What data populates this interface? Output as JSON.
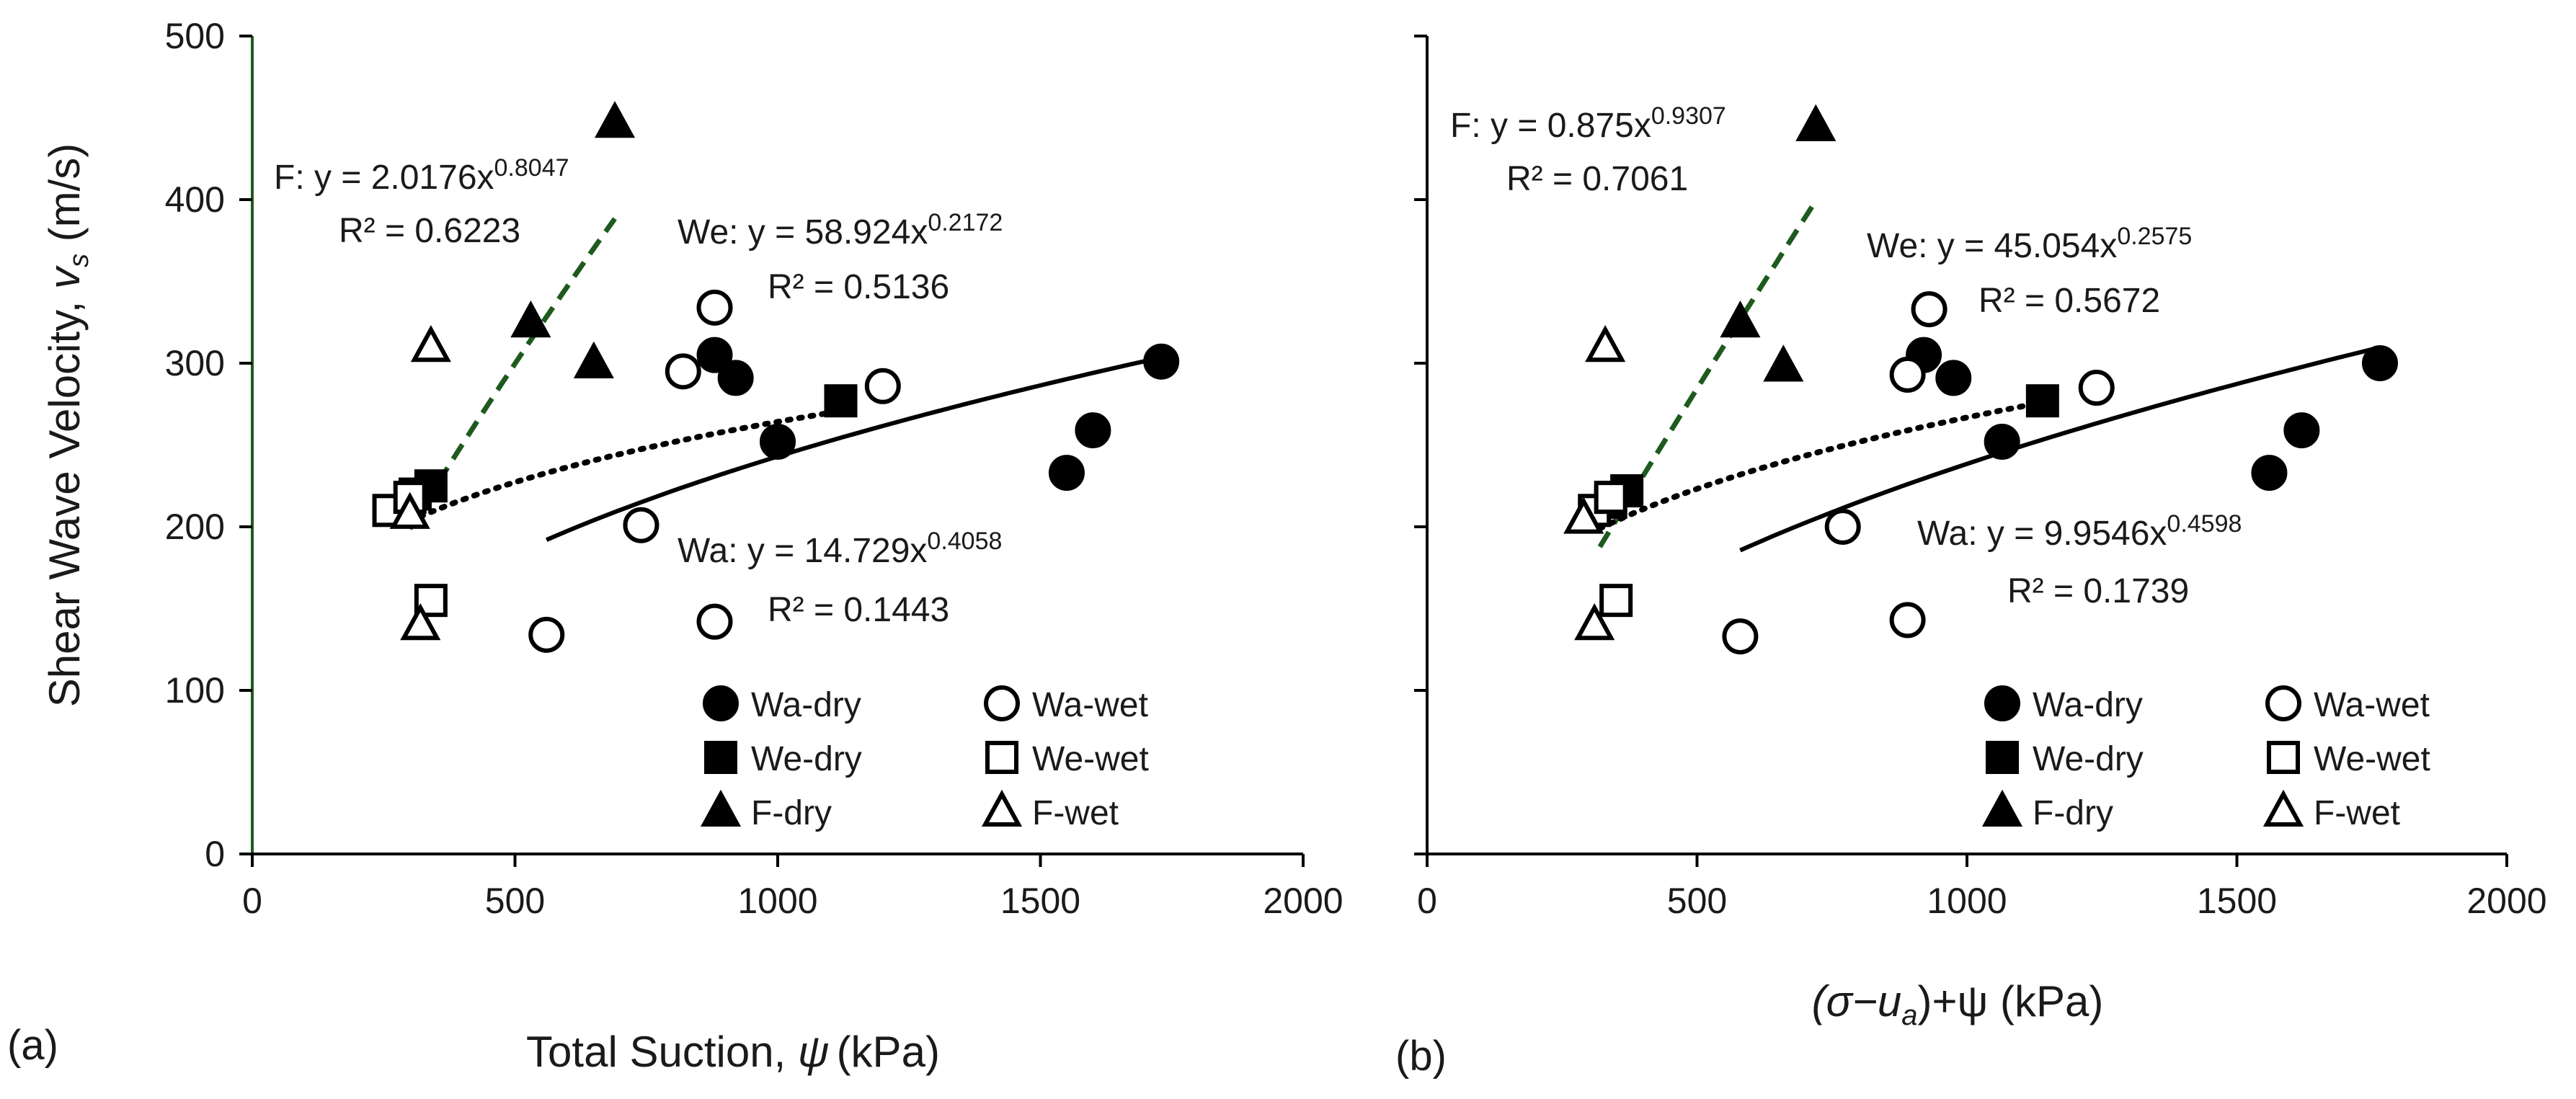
{
  "chart_data": [
    {
      "type": "scatter",
      "panel_label": "(a)",
      "title": "",
      "xlabel": "Total Suction, ",
      "xlabel_symbol": "ψ",
      "xlabel_unit": "(kPa)",
      "ylabel": "Shear Wave Velocity, ",
      "ylabel_symbol": "v",
      "ylabel_sub": "s",
      "ylabel_unit": " (m/s)",
      "xlim": [
        0,
        2000
      ],
      "ylim": [
        0,
        500
      ],
      "xticks": [
        "0",
        "500",
        "1000",
        "1500",
        "2000"
      ],
      "yticks": [
        "0",
        "100",
        "200",
        "300",
        "400",
        "500"
      ],
      "series": [
        {
          "name": "Wa-dry",
          "marker": "circle",
          "filled": true,
          "points": [
            [
              880,
              305
            ],
            [
              920,
              291
            ],
            [
              1000,
              252
            ],
            [
              1550,
              233
            ],
            [
              1600,
              259
            ],
            [
              1730,
              301
            ]
          ]
        },
        {
          "name": "Wa-wet",
          "marker": "circle",
          "filled": false,
          "points": [
            [
              560,
              134
            ],
            [
              740,
              201
            ],
            [
              820,
              295
            ],
            [
              880,
              334
            ],
            [
              880,
              142
            ],
            [
              1200,
              286
            ]
          ]
        },
        {
          "name": "We-dry",
          "marker": "square",
          "filled": true,
          "points": [
            [
              310,
              220
            ],
            [
              340,
              225
            ],
            [
              1120,
              277
            ]
          ]
        },
        {
          "name": "We-wet",
          "marker": "square",
          "filled": false,
          "points": [
            [
              260,
              210
            ],
            [
              300,
              218
            ],
            [
              340,
              155
            ]
          ]
        },
        {
          "name": "F-dry",
          "marker": "triangle",
          "filled": true,
          "points": [
            [
              530,
              325
            ],
            [
              650,
              300
            ],
            [
              690,
              447
            ]
          ]
        },
        {
          "name": "F-wet",
          "marker": "triangle",
          "filled": false,
          "points": [
            [
              300,
              208
            ],
            [
              320,
              140
            ],
            [
              340,
              310
            ]
          ]
        }
      ],
      "fits": [
        {
          "name": "F",
          "a": 2.0176,
          "b": 0.8047,
          "x_range": [
            300,
            690
          ],
          "style": "dashed-green"
        },
        {
          "name": "We",
          "a": 58.924,
          "b": 0.2172,
          "x_range": [
            300,
            1120
          ],
          "style": "dotted"
        },
        {
          "name": "Wa",
          "a": 14.729,
          "b": 0.4058,
          "x_range": [
            560,
            1730
          ],
          "style": "solid"
        }
      ],
      "annotations": {
        "f_eq": "F: y = 2.0176x",
        "f_exp": "0.8047",
        "f_r2": "R² = 0.6223",
        "we_eq": "We: y = 58.924x",
        "we_exp": "0.2172",
        "we_r2": "R² = 0.5136",
        "wa_eq": "Wa: y = 14.729x",
        "wa_exp": "0.4058",
        "wa_r2": "R² = 0.1443"
      },
      "legend": [
        "Wa-dry",
        "Wa-wet",
        "We-dry",
        "We-wet",
        "F-dry",
        "F-wet"
      ],
      "legend_placement": "bottom-right"
    },
    {
      "type": "scatter",
      "panel_label": "(b)",
      "title": "",
      "xlabel": "(σ−u",
      "xlabel_sub": "a",
      "xlabel_rest": ")+ψ (kPa)",
      "ylabel": "",
      "xlim": [
        0,
        2000
      ],
      "ylim": [
        0,
        500
      ],
      "xticks": [
        "0",
        "500",
        "1000",
        "1500",
        "2000"
      ],
      "yticks": [],
      "series": [
        {
          "name": "Wa-dry",
          "marker": "circle",
          "filled": true,
          "points": [
            [
              920,
              305
            ],
            [
              975,
              291
            ],
            [
              1065,
              252
            ],
            [
              1560,
              233
            ],
            [
              1620,
              259
            ],
            [
              1765,
              300
            ]
          ]
        },
        {
          "name": "Wa-wet",
          "marker": "circle",
          "filled": false,
          "points": [
            [
              580,
              133
            ],
            [
              770,
              200
            ],
            [
              890,
              293
            ],
            [
              890,
              143
            ],
            [
              930,
              333
            ],
            [
              1240,
              285
            ]
          ]
        },
        {
          "name": "We-dry",
          "marker": "square",
          "filled": true,
          "points": [
            [
              340,
              215
            ],
            [
              370,
              222
            ],
            [
              1140,
              277
            ]
          ]
        },
        {
          "name": "We-wet",
          "marker": "square",
          "filled": false,
          "points": [
            [
              310,
              210
            ],
            [
              340,
              218
            ],
            [
              350,
              155
            ]
          ]
        },
        {
          "name": "F-dry",
          "marker": "triangle",
          "filled": true,
          "points": [
            [
              580,
              325
            ],
            [
              660,
              298
            ],
            [
              720,
              445
            ]
          ]
        },
        {
          "name": "F-wet",
          "marker": "triangle",
          "filled": false,
          "points": [
            [
              290,
              205
            ],
            [
              310,
              140
            ],
            [
              330,
              310
            ]
          ]
        }
      ],
      "fits": [
        {
          "name": "F",
          "a": 0.875,
          "b": 0.9307,
          "x_range": [
            320,
            720
          ],
          "style": "dashed-green"
        },
        {
          "name": "We",
          "a": 45.054,
          "b": 0.2575,
          "x_range": [
            320,
            1140
          ],
          "style": "dotted"
        },
        {
          "name": "Wa",
          "a": 9.9546,
          "b": 0.4598,
          "x_range": [
            580,
            1765
          ],
          "style": "solid"
        }
      ],
      "annotations": {
        "f_eq": "F: y = 0.875x",
        "f_exp": "0.9307",
        "f_r2": "R² = 0.7061",
        "we_eq": "We: y = 45.054x",
        "we_exp": "0.2575",
        "we_r2": "R² = 0.5672",
        "wa_eq": "Wa: y = 9.9546x",
        "wa_exp": "0.4598",
        "wa_r2": "R² = 0.1739"
      },
      "legend": [
        "Wa-dry",
        "Wa-wet",
        "We-dry",
        "We-wet",
        "F-dry",
        "F-wet"
      ],
      "legend_placement": "bottom-right"
    }
  ],
  "colors": {
    "marker": "#000000",
    "fit_f": "#1e5a1e",
    "axis_a_left": "#1e5a1e",
    "axis": "#000000"
  }
}
